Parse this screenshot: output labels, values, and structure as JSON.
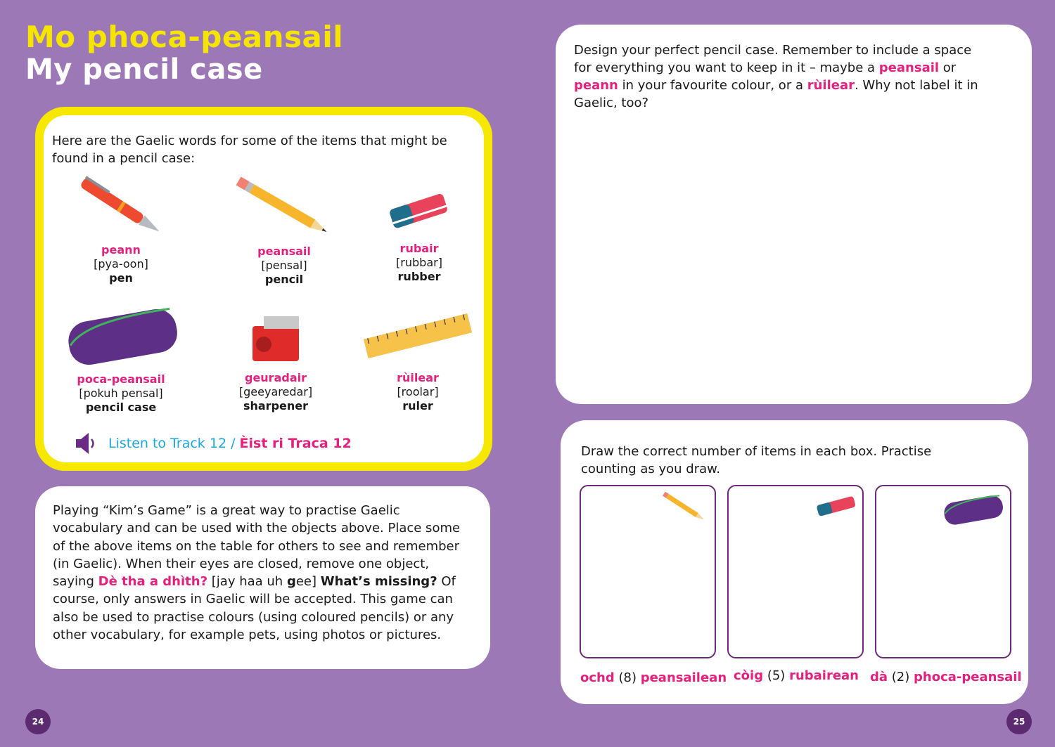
{
  "title_gaelic": "Mo phoca-peansail",
  "title_english": "My pencil case",
  "vocab_box": {
    "intro": "Here are the Gaelic words for some of the items that might be found in a pencil case:",
    "items": [
      {
        "gaelic": "peann",
        "pronunciation": "[pya-oon]",
        "english": "pen",
        "icon": "pen-icon"
      },
      {
        "gaelic": "peansail",
        "pronunciation": "[pensal]",
        "english": "pencil",
        "icon": "pencil-icon"
      },
      {
        "gaelic": "rubair",
        "pronunciation": "[rubbar]",
        "english": "rubber",
        "icon": "rubber-icon"
      },
      {
        "gaelic": "poca-peansail",
        "pronunciation": "[pokuh pensal]",
        "english": "pencil case",
        "icon": "pencil-case-icon"
      },
      {
        "gaelic": "geuradair",
        "pronunciation": "[geeyaredar]",
        "english": "sharpener",
        "icon": "sharpener-icon"
      },
      {
        "gaelic": "rùilear",
        "pronunciation": "[roolar]",
        "english": "ruler",
        "icon": "ruler-icon"
      }
    ],
    "track_english": "Listen to Track 12 /",
    "track_gaelic": "Èist ri Traca 12"
  },
  "kims_game": {
    "p1": "Playing “Kim’s Game” is a great way to practise Gaelic vocabulary and can be used with the objects above. Place some of the above items on the table for others to see and remember (in Gaelic). When their eyes are closed, remove one object, saying",
    "phrase": "Dè tha a dhìth?",
    "pron_a": "[jay haa uh",
    "pron_b": "g",
    "pron_c": "ee]",
    "english": "What’s missing?",
    "p2": "Of course, only answers in Gaelic will be accepted. This game can also be used to practise colours (using coloured pencils) or any other vocabulary, for example pets, using photos or pictures."
  },
  "design": {
    "t1": "Design your perfect pencil case. Remember to include a space for everything you want to keep in it – maybe a",
    "w1": "peansail",
    "t2": "or",
    "w2": "peann",
    "t3": "in your favourite colour, or a",
    "w3": "rùilear",
    "t4": ".  Why not label it in Gaelic, too?"
  },
  "counting": {
    "instruction": "Draw the correct number of items in each box. Practise counting as you draw.",
    "boxes": [
      {
        "number_word": "ochd",
        "number": "(8)",
        "item": "peansailean",
        "icon": "pencil-icon"
      },
      {
        "number_word": "còig",
        "number": "(5)",
        "item": "rubairean",
        "icon": "rubber-icon"
      },
      {
        "number_word": "dà",
        "number": "(2)",
        "item": "phoca-peansail",
        "icon": "pencil-case-icon"
      }
    ]
  },
  "page_left": "24",
  "page_right": "25",
  "colors": {
    "background": "#9c78b6",
    "title_yellow": "#f6e500",
    "gaelic_pink": "#e5207f",
    "track_blue": "#1aa7de",
    "page_circle": "#5b2a70"
  }
}
